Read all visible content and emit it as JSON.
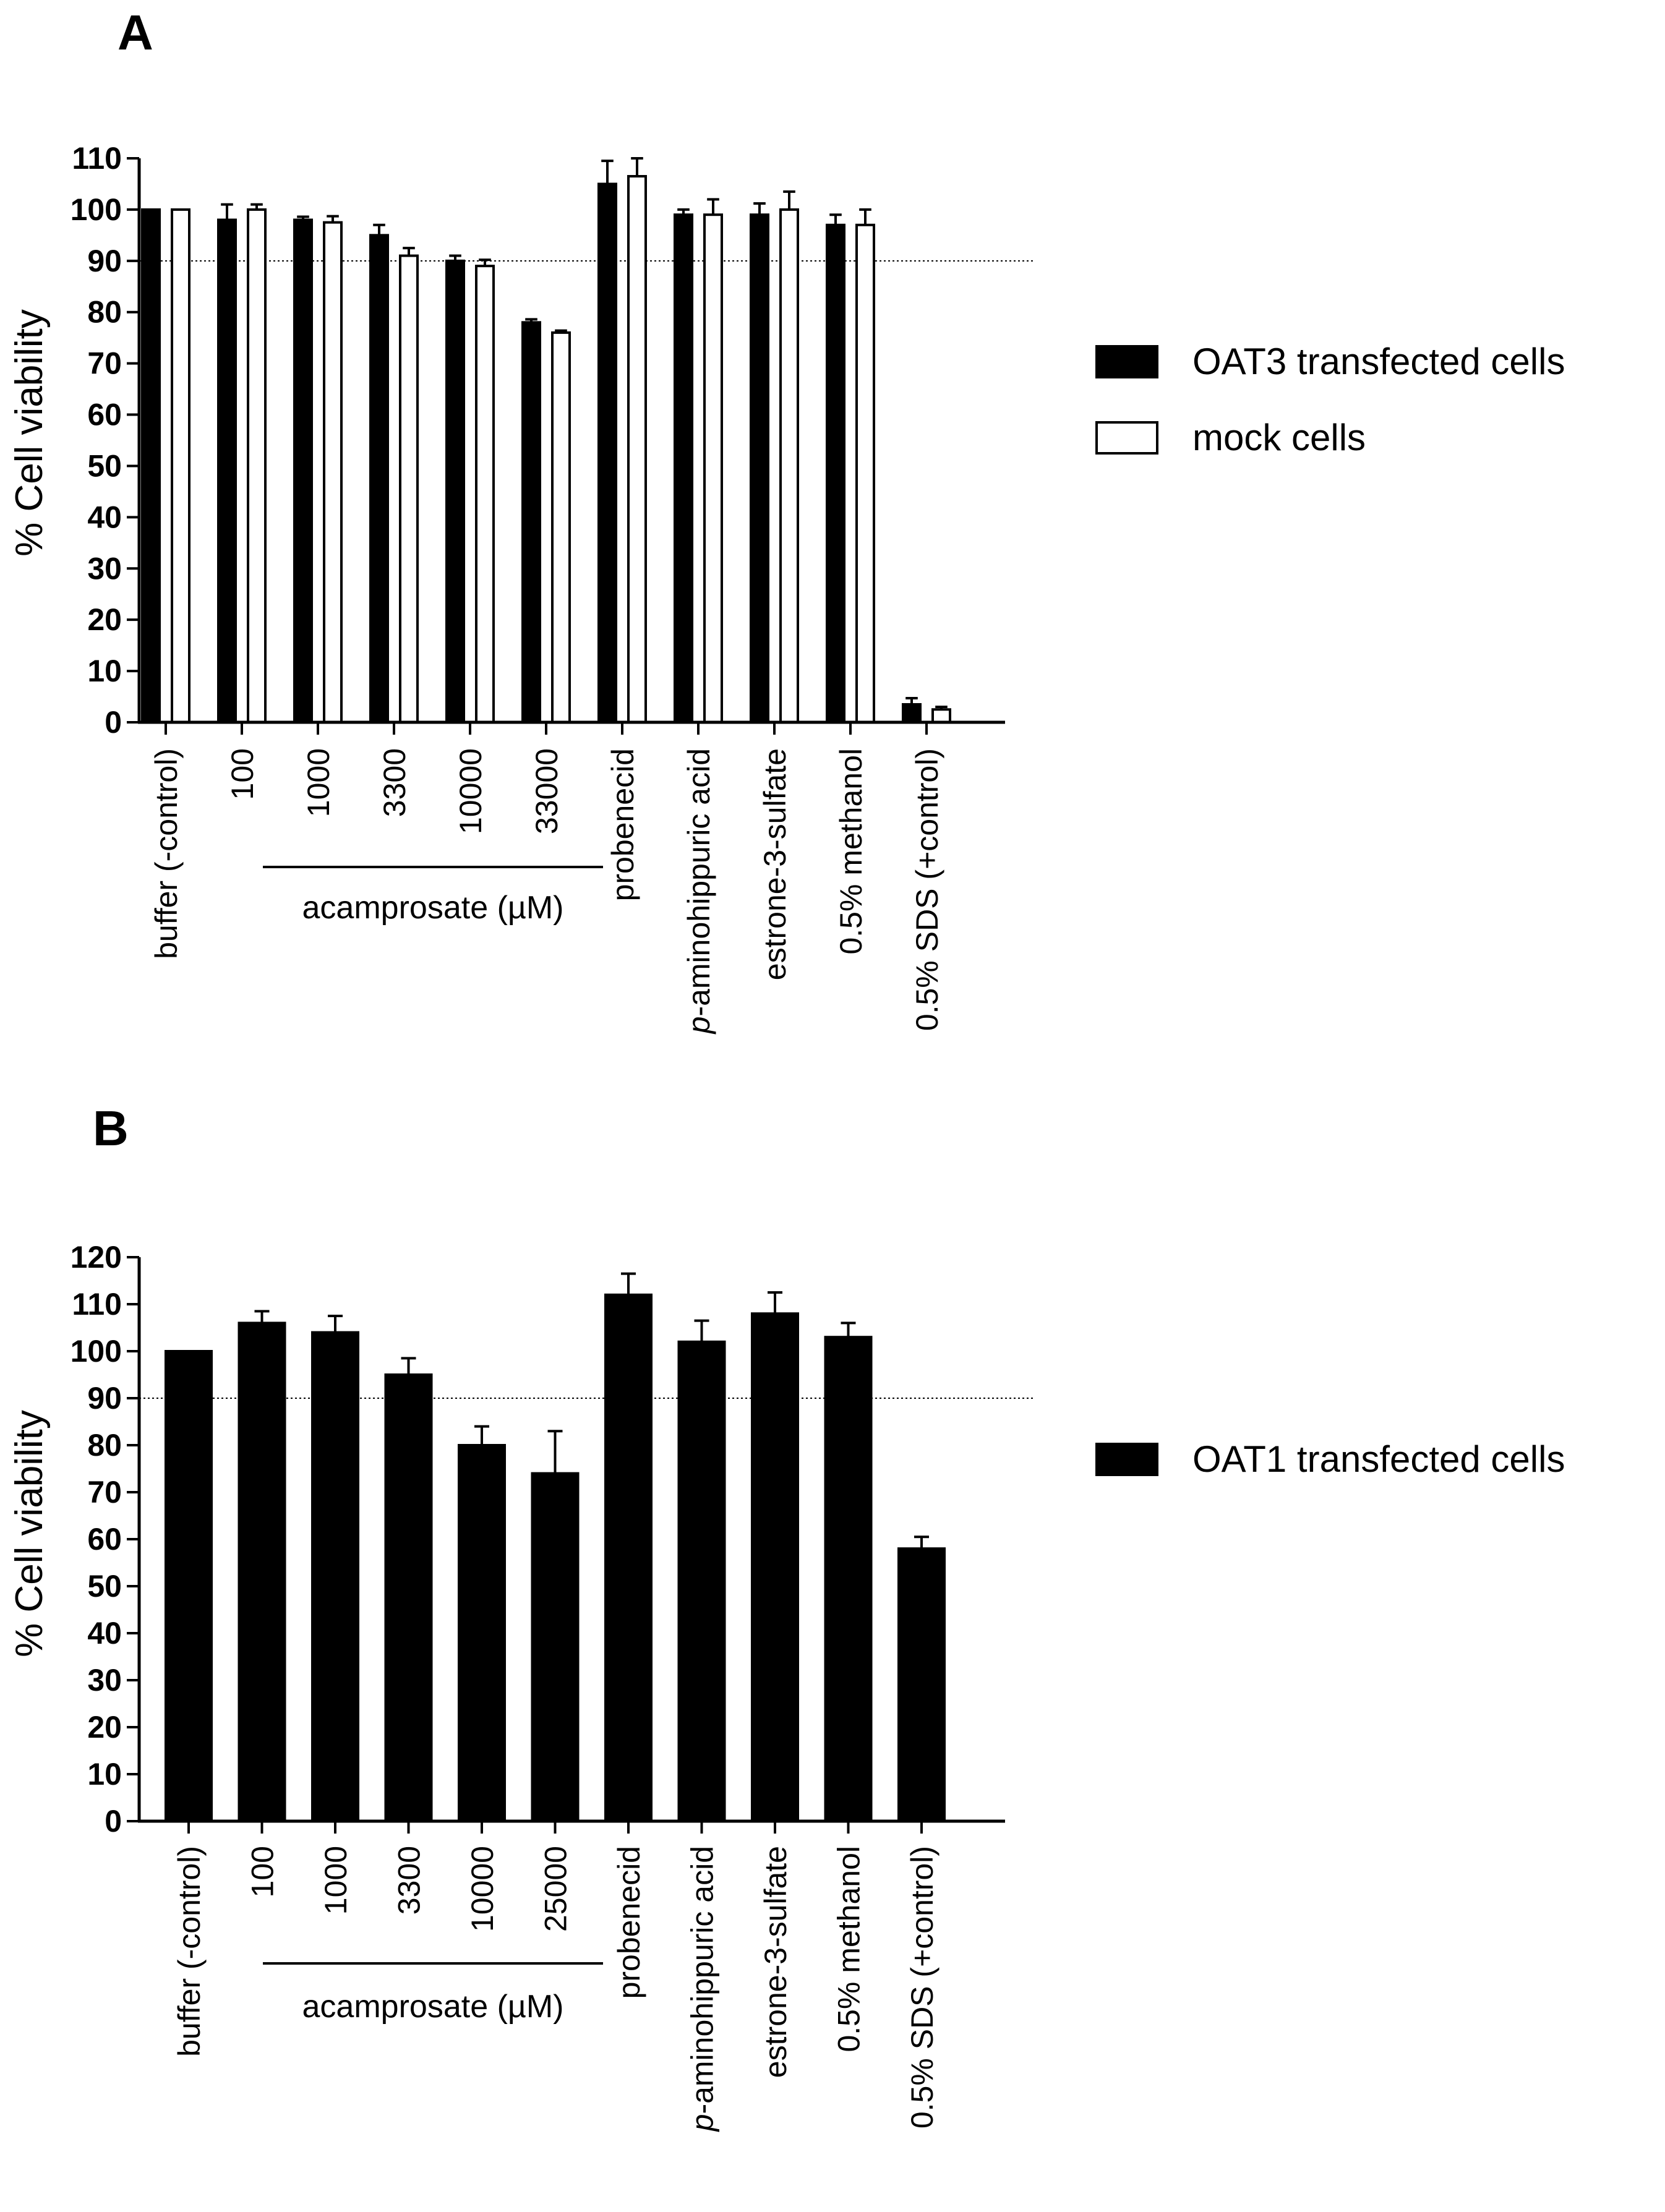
{
  "chart_data": [
    {
      "panel": "A",
      "type": "bar",
      "ylabel": "% Cell viability",
      "ylim": [
        0,
        110
      ],
      "yticks": [
        0,
        10,
        20,
        30,
        40,
        50,
        60,
        70,
        80,
        90,
        100,
        110
      ],
      "reference_line": 90,
      "categories": [
        "buffer (-control)",
        "100",
        "1000",
        "3300",
        "10000",
        "33000",
        "probenecid",
        "p-aminohippuric acid",
        "estrone-3-sulfate",
        "0.5% methanol",
        "0.5% SDS (+control)"
      ],
      "group_label": "acamprosate  (µM)",
      "series": [
        {
          "name": "OAT3 transfected cells",
          "color": "#000000",
          "values": [
            100,
            98,
            98,
            95,
            90,
            78,
            105,
            99,
            99,
            97,
            3.5
          ],
          "errors": [
            0,
            3,
            0.6,
            2,
            1,
            0.6,
            4.5,
            1,
            2.2,
            2,
            1.2
          ]
        },
        {
          "name": "mock cells",
          "color": "#ffffff",
          "values": [
            100,
            100,
            97.5,
            91,
            89,
            76,
            106.5,
            99,
            100,
            97,
            2.5
          ],
          "errors": [
            0,
            1,
            1.2,
            1.5,
            1.2,
            0.4,
            3.5,
            3,
            3.5,
            3,
            0.5
          ]
        }
      ],
      "legend_position": "right"
    },
    {
      "panel": "B",
      "type": "bar",
      "ylabel": "% Cell viability",
      "ylim": [
        0,
        120
      ],
      "yticks": [
        0,
        10,
        20,
        30,
        40,
        50,
        60,
        70,
        80,
        90,
        100,
        110,
        120
      ],
      "reference_line": 90,
      "categories": [
        "buffer (-control)",
        "100",
        "1000",
        "3300",
        "10000",
        "25000",
        "probenecid",
        "p-aminohippuric acid",
        "estrone-3-sulfate",
        "0.5% methanol",
        "0.5% SDS (+control)"
      ],
      "group_label": "acamprosate  (µM)",
      "series": [
        {
          "name": "OAT1 transfected cells",
          "color": "#000000",
          "values": [
            100,
            106,
            104,
            95,
            80,
            74,
            112,
            102,
            108,
            103,
            58
          ],
          "errors": [
            0,
            2.5,
            3.5,
            3.5,
            4,
            9,
            4.5,
            4.5,
            4.5,
            3,
            2.5
          ]
        }
      ],
      "legend_position": "right"
    }
  ]
}
